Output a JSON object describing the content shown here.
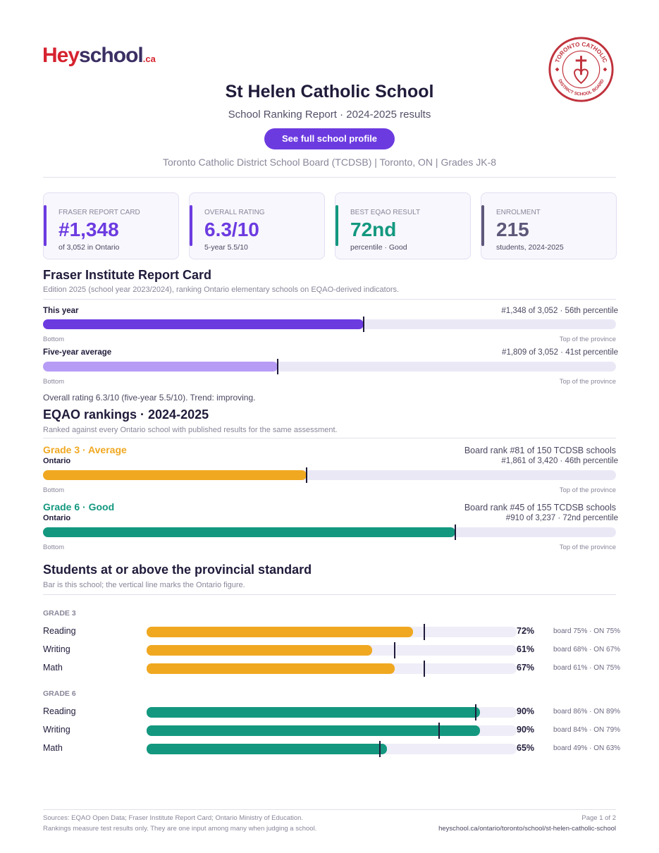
{
  "brand": {
    "logo_hey": "Hey",
    "logo_school": "school",
    "logo_ca": ".ca"
  },
  "board_seal": {
    "text_top": "TORONTO CATHOLIC",
    "text_bottom": "DISTRICT SCHOOL BOARD",
    "color": "#c0323c"
  },
  "header": {
    "title": "St Helen Catholic School",
    "subtitle": "School Ranking Report  ·  2024-2025 results",
    "profile_button": "See full school profile",
    "meta": "Toronto Catholic District School Board (TCDSB)  |  Toronto, ON  |  Grades JK-8"
  },
  "cards": [
    {
      "label": "FRASER REPORT CARD",
      "value": "#1,348",
      "sub": "of 3,052 in Ontario",
      "color": "#6c3be0"
    },
    {
      "label": "OVERALL RATING",
      "value": "6.3/10",
      "sub": "5-year 5.5/10",
      "color": "#6c3be0"
    },
    {
      "label": "BEST EQAO RESULT",
      "value": "72nd",
      "sub": "percentile  ·  Good",
      "color": "#13987f"
    },
    {
      "label": "ENROLMENT",
      "value": "215",
      "sub": "students, 2024-2025",
      "color": "#5e587a"
    }
  ],
  "fraser": {
    "heading": "Fraser Institute Report Card",
    "note": "Edition 2025 (school year 2023/2024), ranking Ontario elementary schools on EQAO-derived indicators.",
    "rows": [
      {
        "label": "This year",
        "right": "#1,348 of 3,052  ·  56th percentile",
        "percentile": 56,
        "color": "#6c3be0"
      },
      {
        "label": "Five-year average",
        "right": "#1,809 of 3,052  ·  41st percentile",
        "percentile": 41,
        "color": "#b79cf5"
      }
    ],
    "axis_left": "Bottom",
    "axis_right": "Top of the province",
    "summary": "Overall rating 6.3/10 (five-year 5.5/10). Trend: improving."
  },
  "eqao": {
    "heading": "EQAO rankings  ·  2024-2025",
    "note": "Ranked against every Ontario school with published results for the same assessment.",
    "grades": [
      {
        "head": "Grade 3  ·  Average",
        "board_rank": "Board rank #81 of 150 TCDSB schools",
        "sub": "Ontario",
        "right": "#1,861 of 3,420  ·  46th percentile",
        "percentile": 46,
        "color": "#f0a821"
      },
      {
        "head": "Grade 6  ·  Good",
        "board_rank": "Board rank #45 of 155 TCDSB schools",
        "sub": "Ontario",
        "right": "#910 of 3,237  ·  72nd percentile",
        "percentile": 72,
        "color": "#13987f"
      }
    ],
    "axis_left": "Bottom",
    "axis_right": "Top of the province"
  },
  "standard": {
    "heading": "Students at or above the provincial standard",
    "note": "Bar is this school; the vertical line marks the Ontario figure.",
    "groups": [
      {
        "caption": "GRADE 3",
        "color": "#f0a821",
        "subjects": [
          {
            "name": "Reading",
            "school": 72,
            "ontario": 75,
            "pct": "72%",
            "cmp": "board 75%  ·  ON 75%"
          },
          {
            "name": "Writing",
            "school": 61,
            "ontario": 67,
            "pct": "61%",
            "cmp": "board 68%  ·  ON 67%"
          },
          {
            "name": "Math",
            "school": 67,
            "ontario": 75,
            "pct": "67%",
            "cmp": "board 61%  ·  ON 75%"
          }
        ]
      },
      {
        "caption": "GRADE 6",
        "color": "#13987f",
        "subjects": [
          {
            "name": "Reading",
            "school": 90,
            "ontario": 89,
            "pct": "90%",
            "cmp": "board 86%  ·  ON 89%"
          },
          {
            "name": "Writing",
            "school": 90,
            "ontario": 79,
            "pct": "90%",
            "cmp": "board 84%  ·  ON 79%"
          },
          {
            "name": "Math",
            "school": 65,
            "ontario": 63,
            "pct": "65%",
            "cmp": "board 49%  ·  ON 63%"
          }
        ]
      }
    ]
  },
  "footer": {
    "sources": "Sources: EQAO Open Data; Fraser Institute Report Card; Ontario Ministry of Education.",
    "disclaimer": "Rankings measure test results only. They are one input among many when judging a school.",
    "page": "Page 1 of 2",
    "url": "heyschool.ca/ontario/toronto/school/st-helen-catholic-school"
  }
}
